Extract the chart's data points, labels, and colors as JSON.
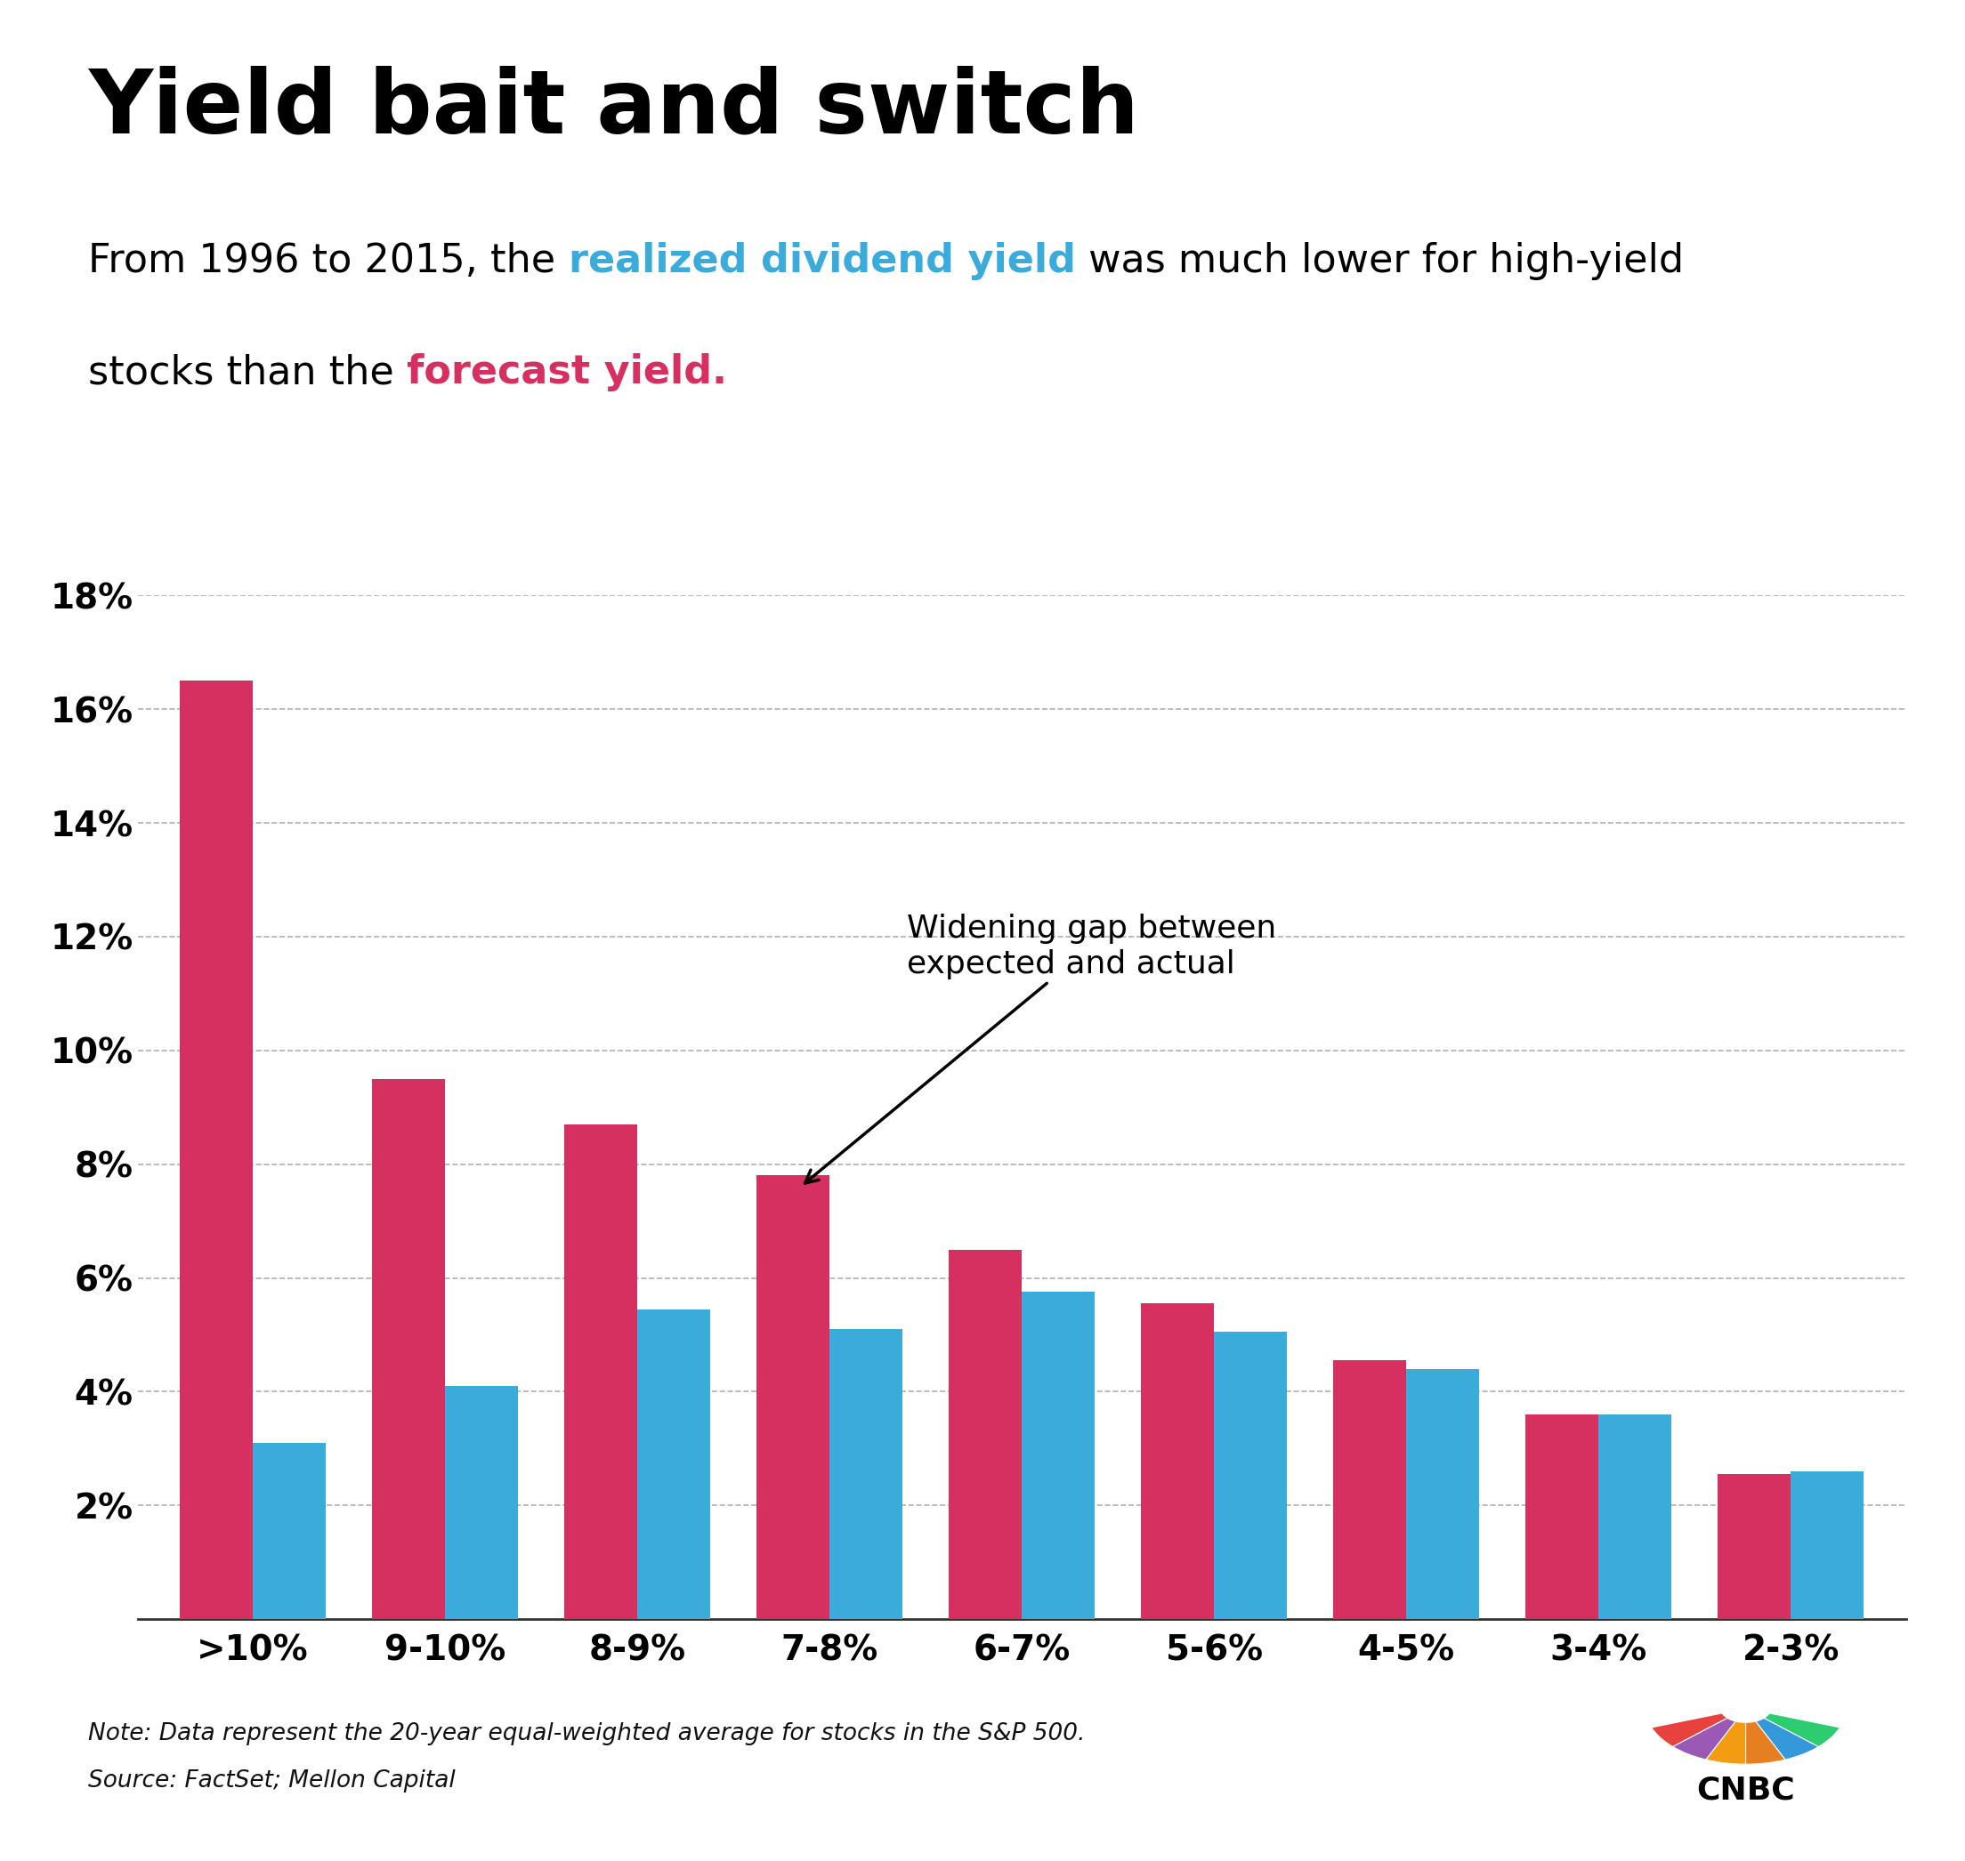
{
  "title": "Yield bait and switch",
  "categories": [
    ">10%",
    "9-10%",
    "8-9%",
    "7-8%",
    "6-7%",
    "5-6%",
    "4-5%",
    "3-4%",
    "2-3%"
  ],
  "forecast_values": [
    16.5,
    9.5,
    8.7,
    7.8,
    6.5,
    5.55,
    4.55,
    3.6,
    2.55
  ],
  "realized_values": [
    3.1,
    4.1,
    5.45,
    5.1,
    5.75,
    5.05,
    4.4,
    3.6,
    2.6
  ],
  "forecast_color": "#d63060",
  "realized_color": "#3aabdb",
  "ylim": [
    0,
    18
  ],
  "yticks": [
    2,
    4,
    6,
    8,
    10,
    12,
    14,
    16,
    18
  ],
  "background_color": "#ffffff",
  "grid_color": "#b0b0b0",
  "annotation_text": "Widening gap between\nexpected and actual",
  "note_text": "Note: Data represent the 20-year equal-weighted average for stocks in the S&P 500.",
  "source_text": "Source: FactSet; Mellon Capital",
  "subtitle_line1_pre": "From 1996 to 2015, the ",
  "subtitle_line1_colored": "realized dividend yield",
  "subtitle_line1_colored_color": "#3aabdb",
  "subtitle_line1_post": " was much lower for high-yield",
  "subtitle_line2_pre": "stocks than the ",
  "subtitle_line2_colored": "forecast yield.",
  "subtitle_line2_colored_color": "#d63060",
  "title_fontsize": 72,
  "subtitle_fontsize": 32,
  "tick_fontsize": 28,
  "annot_fontsize": 26,
  "note_fontsize": 19
}
